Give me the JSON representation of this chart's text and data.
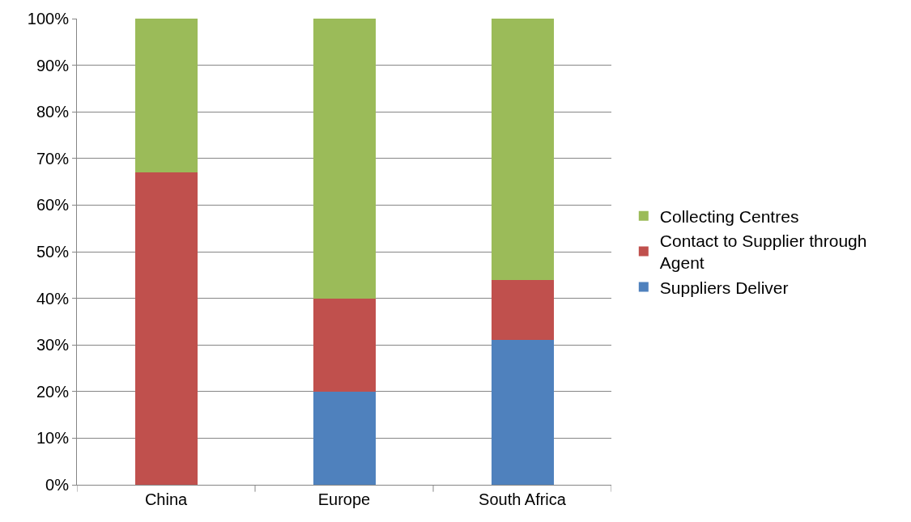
{
  "chart_data": {
    "type": "bar",
    "stacked": true,
    "categories": [
      "China",
      "Europe",
      "South Africa"
    ],
    "series": [
      {
        "name": "Suppliers Deliver",
        "color": "#4f81bd",
        "values": [
          0,
          20,
          31
        ]
      },
      {
        "name": "Contact to Supplier through Agent",
        "color": "#c0504d",
        "values": [
          67,
          20,
          13
        ]
      },
      {
        "name": "Collecting Centres",
        "color": "#9bbb59",
        "values": [
          33,
          60,
          56
        ]
      }
    ],
    "ylim": [
      0,
      100
    ],
    "yticks": [
      {
        "value": 0,
        "label": "0%"
      },
      {
        "value": 10,
        "label": "10%"
      },
      {
        "value": 20,
        "label": "20%"
      },
      {
        "value": 30,
        "label": "30%"
      },
      {
        "value": 40,
        "label": "40%"
      },
      {
        "value": 50,
        "label": "50%"
      },
      {
        "value": 60,
        "label": "60%"
      },
      {
        "value": 70,
        "label": "70%"
      },
      {
        "value": 80,
        "label": "80%"
      },
      {
        "value": 90,
        "label": "90%"
      },
      {
        "value": 100,
        "label": "100%"
      }
    ],
    "grid": "y",
    "legend": "right"
  }
}
